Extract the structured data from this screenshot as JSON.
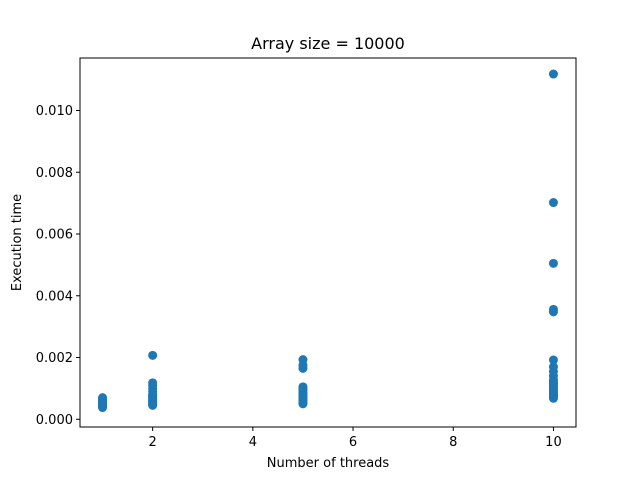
{
  "chart_data": {
    "type": "scatter",
    "title": "Array size = 10000",
    "xlabel": "Number of threads",
    "ylabel": "Execution time",
    "xlim": [
      0.55,
      10.45
    ],
    "ylim": [
      -0.00025,
      0.0117
    ],
    "xticks": [
      2,
      4,
      6,
      8,
      10
    ],
    "xtick_labels": [
      "2",
      "4",
      "6",
      "8",
      "10"
    ],
    "yticks": [
      0.0,
      0.002,
      0.004,
      0.006,
      0.008,
      0.01
    ],
    "ytick_labels": [
      "0.000",
      "0.002",
      "0.004",
      "0.006",
      "0.008",
      "0.010"
    ],
    "grid": false,
    "marker_color": "#1f77b4",
    "series": [
      {
        "points": [
          [
            1,
            0.00038
          ],
          [
            1,
            0.00041
          ],
          [
            1,
            0.00044
          ],
          [
            1,
            0.00047
          ],
          [
            1,
            0.0005
          ],
          [
            1,
            0.00053
          ],
          [
            1,
            0.00056
          ],
          [
            1,
            0.00059
          ],
          [
            1,
            0.00062
          ],
          [
            1,
            0.00066
          ],
          [
            1,
            0.0007
          ],
          [
            2,
            0.00045
          ],
          [
            2,
            0.00048
          ],
          [
            2,
            0.00051
          ],
          [
            2,
            0.00054
          ],
          [
            2,
            0.00057
          ],
          [
            2,
            0.0006
          ],
          [
            2,
            0.00064
          ],
          [
            2,
            0.00068
          ],
          [
            2,
            0.00072
          ],
          [
            2,
            0.00076
          ],
          [
            2,
            0.0008
          ],
          [
            2,
            0.0009
          ],
          [
            2,
            0.001
          ],
          [
            2,
            0.0011
          ],
          [
            2,
            0.00118
          ],
          [
            2,
            0.00207
          ],
          [
            5,
            0.0005
          ],
          [
            5,
            0.00055
          ],
          [
            5,
            0.0006
          ],
          [
            5,
            0.00065
          ],
          [
            5,
            0.0007
          ],
          [
            5,
            0.00075
          ],
          [
            5,
            0.0008
          ],
          [
            5,
            0.00085
          ],
          [
            5,
            0.0009
          ],
          [
            5,
            0.00095
          ],
          [
            5,
            0.001
          ],
          [
            5,
            0.00105
          ],
          [
            5,
            0.00165
          ],
          [
            5,
            0.00175
          ],
          [
            5,
            0.00193
          ],
          [
            10,
            0.00068
          ],
          [
            10,
            0.00072
          ],
          [
            10,
            0.00076
          ],
          [
            10,
            0.0008
          ],
          [
            10,
            0.00085
          ],
          [
            10,
            0.0009
          ],
          [
            10,
            0.00095
          ],
          [
            10,
            0.001
          ],
          [
            10,
            0.00105
          ],
          [
            10,
            0.0011
          ],
          [
            10,
            0.00115
          ],
          [
            10,
            0.0012
          ],
          [
            10,
            0.00128
          ],
          [
            10,
            0.0014
          ],
          [
            10,
            0.00155
          ],
          [
            10,
            0.0017
          ],
          [
            10,
            0.00192
          ],
          [
            10,
            0.00348
          ],
          [
            10,
            0.00356
          ],
          [
            10,
            0.00505
          ],
          [
            10,
            0.00702
          ],
          [
            10,
            0.01118
          ]
        ]
      }
    ]
  }
}
